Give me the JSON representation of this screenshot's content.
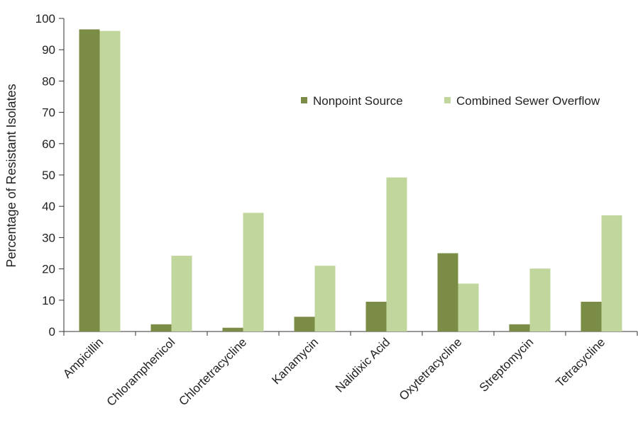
{
  "chart_data": {
    "type": "bar",
    "title": "",
    "xlabel": "",
    "ylabel": "Percentage of Resistant Isolates",
    "ylim": [
      0,
      100
    ],
    "yticks": [
      0,
      10,
      20,
      30,
      40,
      50,
      60,
      70,
      80,
      90,
      100
    ],
    "grid": false,
    "legend_position": "top-right",
    "categories": [
      "Ampicillin",
      "Chloramphenicol",
      "Chlortetracycline",
      "Kanamycin",
      "Nalidixic Acid",
      "Oxytetracycline",
      "Streptomycin",
      "Tetracycline"
    ],
    "series": [
      {
        "name": "Nonpoint Source",
        "color": "#7b8c46",
        "values": [
          96.5,
          2.3,
          1.2,
          4.7,
          9.5,
          25,
          2.3,
          9.5
        ]
      },
      {
        "name": "Combined Sewer Overflow",
        "color": "#c1d69c",
        "values": [
          96,
          24.2,
          37.9,
          21,
          49.2,
          15.3,
          20.1,
          37.1
        ]
      }
    ]
  }
}
